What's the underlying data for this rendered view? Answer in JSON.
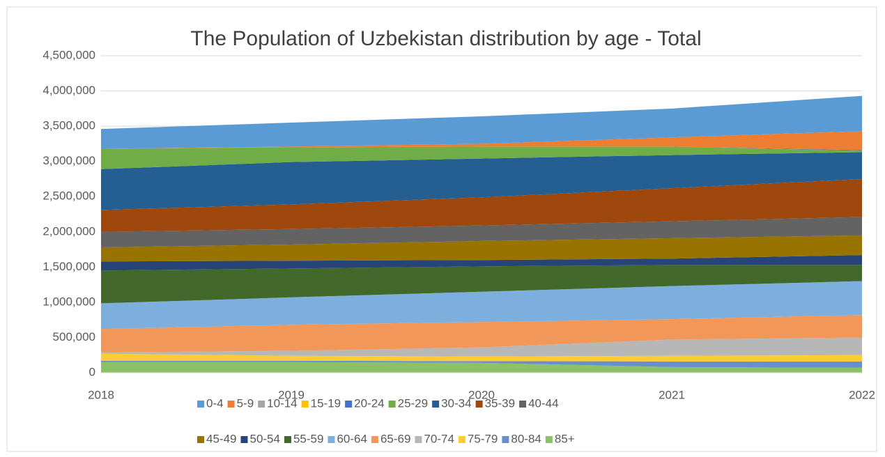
{
  "chart_data": {
    "type": "stacked_area",
    "title": "The Population of Uzbekistan distribution by age - Total",
    "categories": [
      "2018",
      "2019",
      "2020",
      "2021",
      "2022"
    ],
    "ylim": [
      0,
      4500000
    ],
    "yticks": [
      0,
      {
        "value": 500000,
        "label": "500,000"
      },
      {
        "value": 1000000,
        "label": "1,000,000"
      },
      {
        "value": 1500000,
        "label": "1,500,000"
      },
      {
        "value": 2000000,
        "label": "2,000,000"
      },
      {
        "value": 2500000,
        "label": "2,500,000"
      },
      {
        "value": 3000000,
        "label": "3,000,000"
      },
      {
        "value": 3500000,
        "label": "3,500,000"
      },
      {
        "value": 4000000,
        "label": "4,000,000"
      },
      {
        "value": 4500000,
        "label": "4,500,000"
      }
    ],
    "grid": true,
    "legend": "bottom",
    "series": [
      {
        "name": "0-4",
        "color": "#5b9bd5",
        "values": [
          280000,
          340000,
          390000,
          410000,
          500000
        ]
      },
      {
        "name": "5-9",
        "color": "#ed7d31",
        "values": [
          0,
          10000,
          40000,
          130000,
          270000
        ]
      },
      {
        "name": "10-14",
        "color": "#a5a5a5",
        "values": [
          0,
          0,
          0,
          0,
          0
        ]
      },
      {
        "name": "15-19",
        "color": "#ffc000",
        "values": [
          0,
          0,
          0,
          0,
          0
        ]
      },
      {
        "name": "20-24",
        "color": "#4472c4",
        "values": [
          0,
          0,
          0,
          0,
          10000
        ]
      },
      {
        "name": "25-29",
        "color": "#70ad47",
        "values": [
          290000,
          210000,
          170000,
          120000,
          20000
        ]
      },
      {
        "name": "30-34",
        "color": "#255e91",
        "values": [
          580000,
          600000,
          550000,
          470000,
          380000
        ]
      },
      {
        "name": "35-39",
        "color": "#9e480e",
        "values": [
          310000,
          350000,
          400000,
          470000,
          540000
        ]
      },
      {
        "name": "40-44",
        "color": "#636363",
        "values": [
          220000,
          220000,
          220000,
          240000,
          260000
        ]
      },
      {
        "name": "45-49",
        "color": "#997300",
        "values": [
          200000,
          230000,
          270000,
          290000,
          280000
        ]
      },
      {
        "name": "50-54",
        "color": "#264478",
        "values": [
          130000,
          110000,
          90000,
          90000,
          140000
        ]
      },
      {
        "name": "55-59",
        "color": "#43682b",
        "values": [
          465000,
          410000,
          360000,
          300000,
          230000
        ]
      },
      {
        "name": "60-64",
        "color": "#7cafdd",
        "values": [
          365000,
          390000,
          430000,
          470000,
          480000
        ]
      },
      {
        "name": "65-69",
        "color": "#f1975a",
        "values": [
          330000,
          370000,
          360000,
          290000,
          320000
        ]
      },
      {
        "name": "70-74",
        "color": "#b7b7b7",
        "values": [
          20000,
          70000,
          130000,
          230000,
          250000
        ]
      },
      {
        "name": "75-79",
        "color": "#ffcd33",
        "values": [
          100000,
          70000,
          65000,
          80000,
          90000
        ]
      },
      {
        "name": "80-84",
        "color": "#698ed0",
        "values": [
          20000,
          20000,
          25000,
          80000,
          90000
        ]
      },
      {
        "name": "85+",
        "color": "#8cc168",
        "values": [
          150000,
          150000,
          140000,
          80000,
          70000
        ]
      }
    ]
  }
}
